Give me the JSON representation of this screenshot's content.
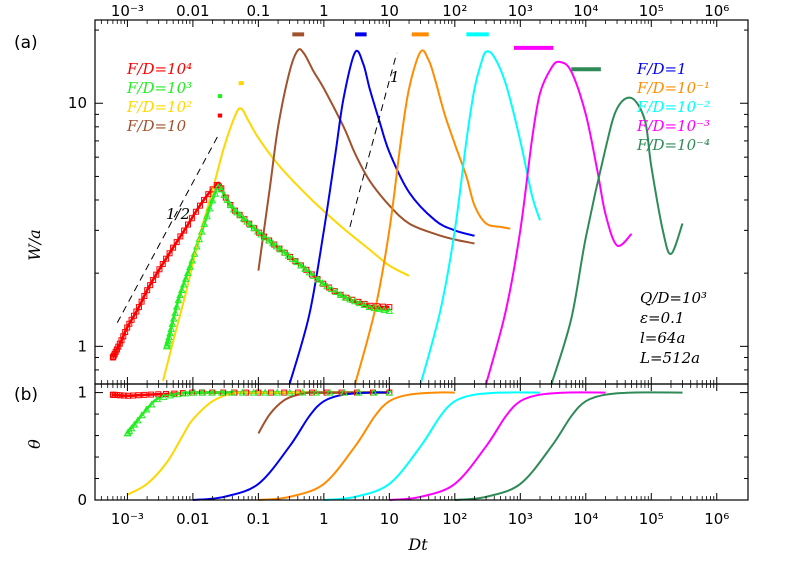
{
  "figure": {
    "panel_a": "(a)",
    "panel_b": "(b)",
    "xlabel": "Dt",
    "ylabel_a": "W/a",
    "ylabel_b": "θ",
    "slope_half": "1/2",
    "slope_one": "1",
    "params": [
      "Q/D=10³",
      "ε=0.1",
      "l=64a",
      "L=512a"
    ]
  },
  "chart_data": [
    {
      "type": "line",
      "panel": "(a)",
      "xscale": "log",
      "yscale": "log",
      "xlim": [
        0.00032,
        3000000
      ],
      "ylim": [
        0.7,
        22
      ],
      "xlabel": "Dt",
      "ylabel": "W/a",
      "xticks": [
        "10⁻³",
        "0.01",
        "0.1",
        "1",
        "10",
        "10²",
        "10³",
        "10⁴",
        "10⁵",
        "10⁶"
      ],
      "yticks": [
        "1",
        "10"
      ],
      "series": [
        {
          "name": "F/D=10⁴",
          "color": "#ff0000",
          "marker": "square",
          "x": [
            0.0006,
            0.0008,
            0.001,
            0.0015,
            0.002,
            0.003,
            0.005,
            0.008,
            0.012,
            0.018,
            0.025,
            0.03,
            0.04,
            0.06,
            0.1,
            0.2,
            0.5,
            1,
            2,
            5,
            10
          ],
          "y": [
            0.9,
            1.05,
            1.2,
            1.45,
            1.7,
            2.05,
            2.55,
            3.1,
            3.7,
            4.3,
            4.7,
            4.2,
            3.7,
            3.35,
            2.95,
            2.55,
            2.1,
            1.8,
            1.6,
            1.47,
            1.45
          ]
        },
        {
          "name": "F/D=10³",
          "color": "#22ee22",
          "marker": "triangle",
          "x": [
            0.004,
            0.006,
            0.01,
            0.015,
            0.02,
            0.025,
            0.03,
            0.04,
            0.06,
            0.1,
            0.2,
            0.5,
            1,
            2,
            5,
            10
          ],
          "y": [
            1.0,
            1.55,
            2.3,
            3.2,
            4.0,
            4.6,
            4.2,
            3.7,
            3.35,
            2.95,
            2.55,
            2.1,
            1.8,
            1.6,
            1.45,
            1.4
          ]
        },
        {
          "name": "F/D=10²",
          "color": "#ffd700",
          "x": [
            0.0035,
            0.005,
            0.008,
            0.012,
            0.02,
            0.03,
            0.045,
            0.055,
            0.07,
            0.1,
            0.2,
            0.5,
            1,
            2,
            5,
            10,
            20
          ],
          "y": [
            0.72,
            1.05,
            1.7,
            2.7,
            4.4,
            6.6,
            9.0,
            9.5,
            8.5,
            7.2,
            5.6,
            4.3,
            3.6,
            3.05,
            2.5,
            2.15,
            1.95
          ]
        },
        {
          "name": "F/D=10",
          "color": "#a0522d",
          "x": [
            0.1,
            0.15,
            0.2,
            0.3,
            0.4,
            0.5,
            0.7,
            1,
            2,
            3,
            5,
            10,
            20,
            50,
            100,
            200
          ],
          "y": [
            2.05,
            4.5,
            8.0,
            13.5,
            16.5,
            16.0,
            13.5,
            11.5,
            8.0,
            6.2,
            4.8,
            3.8,
            3.2,
            2.9,
            2.75,
            2.65
          ]
        },
        {
          "name": "F/D=1",
          "color": "#0000ee",
          "x": [
            0.3,
            0.6,
            1,
            1.5,
            2,
            3,
            4,
            5,
            7,
            10,
            20,
            50,
            100,
            200
          ],
          "y": [
            0.7,
            1.35,
            3.0,
            6.2,
            10.5,
            16.2,
            14.5,
            11.5,
            8.5,
            6.3,
            4.3,
            3.3,
            3.0,
            2.85
          ]
        },
        {
          "name": "F/D=10⁻¹",
          "color": "#ff8c00",
          "x": [
            3,
            6,
            10,
            15,
            20,
            30,
            40,
            50,
            70,
            100,
            150,
            200,
            300,
            500,
            700
          ],
          "y": [
            0.7,
            1.4,
            3.0,
            7.0,
            11.5,
            16.3,
            15.0,
            12.5,
            9.0,
            6.8,
            5.0,
            3.8,
            3.2,
            3.1,
            3.05
          ]
        },
        {
          "name": "F/D=10⁻²",
          "color": "#00ffff",
          "x": [
            30,
            60,
            100,
            150,
            200,
            250,
            300,
            400,
            600,
            1000,
            1500,
            2000
          ],
          "y": [
            0.7,
            1.4,
            3.0,
            7.0,
            11.5,
            14.5,
            16.3,
            15.5,
            12.0,
            7.0,
            4.2,
            3.3
          ]
        },
        {
          "name": "F/D=10⁻³",
          "color": "#ff00ff",
          "x": [
            300,
            600,
            1000,
            1500,
            2000,
            3000,
            4000,
            6000,
            10000,
            15000,
            20000,
            30000,
            50000
          ],
          "y": [
            0.7,
            1.4,
            3.0,
            7.0,
            11.0,
            14.0,
            14.8,
            13.5,
            9.0,
            5.3,
            3.5,
            2.6,
            2.9
          ]
        },
        {
          "name": "F/D=10⁻⁴",
          "color": "#2e8b57",
          "x": [
            3000,
            6000,
            10000,
            20000,
            30000,
            50000,
            80000,
            100000,
            150000,
            200000,
            300000
          ],
          "y": [
            0.7,
            1.3,
            2.8,
            6.5,
            9.5,
            10.5,
            8.5,
            5.5,
            3.0,
            2.4,
            3.2
          ]
        }
      ],
      "annotations": [
        {
          "text": "1/2",
          "kind": "dashed slope line"
        },
        {
          "text": "1",
          "kind": "dashed slope line"
        }
      ]
    },
    {
      "type": "line",
      "panel": "(b)",
      "xscale": "log",
      "xlim": [
        0.00032,
        3000000
      ],
      "ylim": [
        0,
        1.08
      ],
      "xlabel": "Dt",
      "ylabel": "θ",
      "yticks": [
        "0",
        "1"
      ],
      "series": [
        {
          "name": "F/D=10⁴",
          "color": "#ff0000",
          "marker": "square",
          "x": [
            0.0006,
            0.001,
            0.002,
            0.005,
            0.01,
            0.1,
            1,
            10
          ],
          "y": [
            0.98,
            0.97,
            0.98,
            0.99,
            1.0,
            1.0,
            1.0,
            1.0
          ]
        },
        {
          "name": "F/D=10³",
          "color": "#22ee22",
          "marker": "triangle",
          "x": [
            0.001,
            0.002,
            0.003,
            0.005,
            0.01,
            0.1,
            1,
            10
          ],
          "y": [
            0.62,
            0.85,
            0.95,
            0.98,
            1.0,
            1.0,
            1.0,
            1.0
          ]
        },
        {
          "name": "F/D=10²",
          "color": "#ffd700",
          "x": [
            0.001,
            0.002,
            0.004,
            0.007,
            0.01,
            0.02,
            0.04,
            0.1,
            10
          ],
          "y": [
            0.05,
            0.15,
            0.35,
            0.6,
            0.75,
            0.92,
            0.99,
            1.0,
            1.0
          ]
        },
        {
          "name": "F/D=10",
          "color": "#a0522d",
          "x": [
            0.1,
            0.15,
            0.25,
            0.4,
            0.6,
            1,
            10
          ],
          "y": [
            0.62,
            0.8,
            0.93,
            0.98,
            1.0,
            1.0,
            1.0
          ]
        },
        {
          "name": "F/D=1",
          "color": "#0000ee",
          "x": [
            0.01,
            0.03,
            0.1,
            0.3,
            0.6,
            1,
            2,
            5,
            10
          ],
          "y": [
            0.0,
            0.03,
            0.15,
            0.5,
            0.78,
            0.92,
            0.98,
            1.0,
            1.0
          ]
        },
        {
          "name": "F/D=10⁻¹",
          "color": "#ff8c00",
          "x": [
            0.1,
            0.3,
            1,
            3,
            6,
            10,
            20,
            50,
            100
          ],
          "y": [
            0.0,
            0.03,
            0.15,
            0.5,
            0.78,
            0.92,
            0.98,
            1.0,
            1.0
          ]
        },
        {
          "name": "F/D=10⁻²",
          "color": "#00ffff",
          "x": [
            1,
            3,
            10,
            30,
            60,
            100,
            200,
            500,
            2000
          ],
          "y": [
            0.0,
            0.03,
            0.15,
            0.5,
            0.78,
            0.92,
            0.98,
            1.0,
            1.0
          ]
        },
        {
          "name": "F/D=10⁻³",
          "color": "#ff00ff",
          "x": [
            10,
            30,
            100,
            300,
            600,
            1000,
            2000,
            5000,
            20000
          ],
          "y": [
            0.0,
            0.03,
            0.15,
            0.5,
            0.78,
            0.92,
            0.98,
            1.0,
            1.0
          ]
        },
        {
          "name": "F/D=10⁻⁴",
          "color": "#2e8b57",
          "x": [
            100,
            300,
            1000,
            3000,
            6000,
            10000,
            20000,
            50000,
            300000
          ],
          "y": [
            0.0,
            0.03,
            0.15,
            0.5,
            0.78,
            0.92,
            0.98,
            1.0,
            1.0
          ]
        }
      ]
    }
  ]
}
